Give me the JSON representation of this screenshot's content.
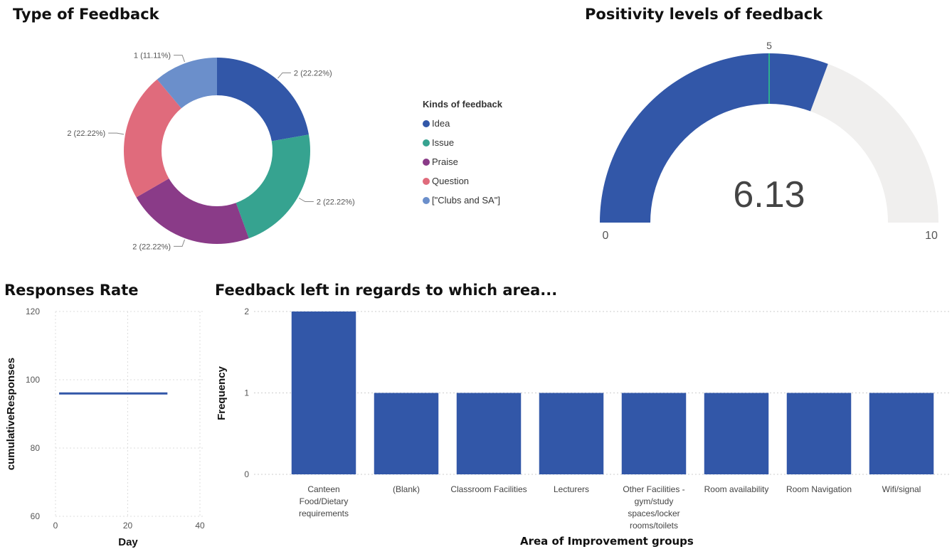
{
  "chart_data": [
    {
      "type": "pie",
      "title": "Type of Feedback",
      "legend_title": "Kinds of feedback",
      "legend_position": "right",
      "categories": [
        "Idea",
        "Issue",
        "Praise",
        "Question",
        "[\"Clubs and SA\"]"
      ],
      "values": [
        2,
        2,
        2,
        2,
        1
      ],
      "labels": [
        "2 (22.22%)",
        "2 (22.22%)",
        "2 (22.22%)",
        "2 (22.22%)",
        "1 (11.11%)"
      ],
      "colors": [
        "#3257a8",
        "#36a390",
        "#8a3b88",
        "#e06b7c",
        "#6b8fcb"
      ]
    },
    {
      "type": "gauge",
      "title": "Positivity levels of feedback",
      "value": 6.13,
      "value_label": "6.13",
      "min": 0,
      "max": 10,
      "target": 5,
      "min_label": "0",
      "max_label": "10",
      "target_label": "5",
      "colors": {
        "fill": "#3257a8",
        "track": "#f0efee",
        "target": "#2fb08e"
      }
    },
    {
      "type": "line",
      "title": "Responses Rate",
      "xlabel": "Day",
      "ylabel": "cumulativeResponses",
      "xlim": [
        0,
        40
      ],
      "ylim": [
        60,
        120
      ],
      "xticks": [
        "0",
        "20",
        "40"
      ],
      "yticks": [
        "60",
        "80",
        "100",
        "120"
      ],
      "series": [
        {
          "x": [
            1,
            31
          ],
          "y": [
            96,
            96
          ]
        }
      ],
      "grid": true,
      "color": "#3257a8"
    },
    {
      "type": "bar",
      "title": "Feedback left in regards to which area...",
      "xlabel": "Area of Improvement groups",
      "ylabel": "Frequency",
      "ylim": [
        0,
        2
      ],
      "yticks": [
        "0",
        "1",
        "2"
      ],
      "categories": [
        "Canteen Food/Dietary requirements",
        "(Blank)",
        "Classroom Facilities",
        "Lecturers",
        "Other Facilities - gym/study spaces/locker rooms/toilets",
        "Room availability",
        "Room Navigation",
        "Wifi/signal"
      ],
      "values": [
        2,
        1,
        1,
        1,
        1,
        1,
        1,
        1
      ],
      "color": "#3257a8",
      "grid": true
    }
  ]
}
